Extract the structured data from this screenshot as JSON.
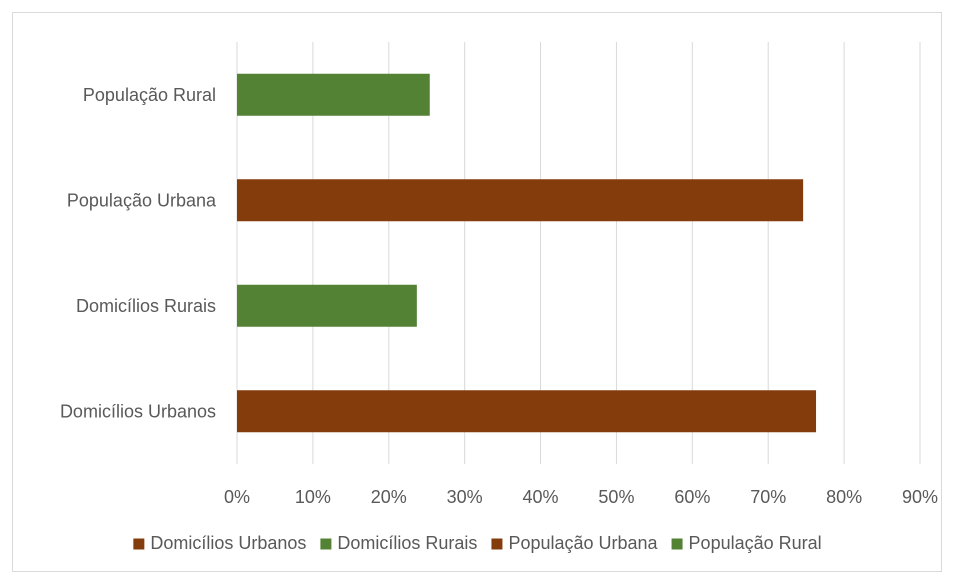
{
  "chart_data": {
    "type": "bar",
    "orientation": "horizontal",
    "title": "",
    "xlabel": "",
    "ylabel": "",
    "categories": [
      "Domicílios Urbanos",
      "Domicílios Rurais",
      "População Urbana",
      "População Rural"
    ],
    "values": [
      76.3,
      23.7,
      74.6,
      25.4
    ],
    "bar_colors": [
      "#843c0c",
      "#548235",
      "#843c0c",
      "#548235"
    ],
    "xlim": [
      0,
      90
    ],
    "xticks": [
      0,
      10,
      20,
      30,
      40,
      50,
      60,
      70,
      80,
      90
    ],
    "xtick_labels": [
      "0%",
      "10%",
      "20%",
      "30%",
      "40%",
      "50%",
      "60%",
      "70%",
      "80%",
      "90%"
    ],
    "grid": true,
    "legend": {
      "position": "bottom",
      "entries": [
        {
          "label": "Domicílios Urbanos",
          "color": "#843c0c"
        },
        {
          "label": "Domicílios Rurais",
          "color": "#548235"
        },
        {
          "label": "População Urbana",
          "color": "#843c0c"
        },
        {
          "label": "População Rural",
          "color": "#548235"
        }
      ]
    }
  }
}
